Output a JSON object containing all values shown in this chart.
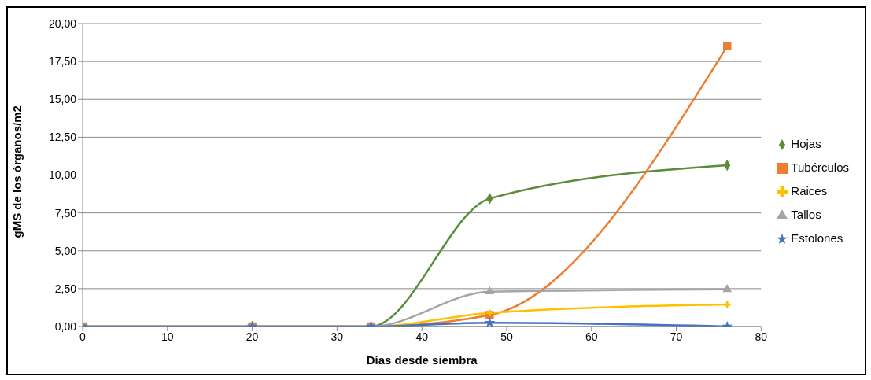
{
  "chart_data": {
    "type": "line",
    "xlabel": "Días desde siembra",
    "ylabel": "gMS de los órganos/m2",
    "x": [
      0,
      20,
      34,
      48,
      76
    ],
    "xlim": [
      0,
      80
    ],
    "xticks": [
      0,
      10,
      20,
      30,
      40,
      50,
      60,
      70,
      80
    ],
    "ylim": [
      0,
      20
    ],
    "yticks": [
      {
        "value": 0,
        "label": "0,00"
      },
      {
        "value": 2.5,
        "label": "2,50"
      },
      {
        "value": 5,
        "label": "5,00"
      },
      {
        "value": 7.5,
        "label": "7,50"
      },
      {
        "value": 10,
        "label": "10,00"
      },
      {
        "value": 12.5,
        "label": "12,50"
      },
      {
        "value": 15,
        "label": "15,00"
      },
      {
        "value": 17.5,
        "label": "17,50"
      },
      {
        "value": 20,
        "label": "20,00"
      }
    ],
    "grid": "y",
    "legend": "right",
    "series": [
      {
        "name": "Hojas",
        "color": "#5b8c3a",
        "marker": "diamond",
        "values": [
          0,
          0,
          0,
          8.45,
          10.65
        ]
      },
      {
        "name": "Tubérculos",
        "color": "#ed7d31",
        "marker": "square",
        "values": [
          0,
          0,
          0,
          0.75,
          18.5
        ]
      },
      {
        "name": "Raices",
        "color": "#ffc000",
        "marker": "cross",
        "values": [
          0,
          0,
          0,
          0.9,
          1.45
        ]
      },
      {
        "name": "Tallos",
        "color": "#a5a5a5",
        "marker": "triangle",
        "values": [
          0,
          0,
          0,
          2.3,
          2.45
        ]
      },
      {
        "name": "Estolones",
        "color": "#4472c4",
        "marker": "star",
        "values": [
          0,
          0,
          0,
          0.25,
          0
        ]
      }
    ]
  }
}
